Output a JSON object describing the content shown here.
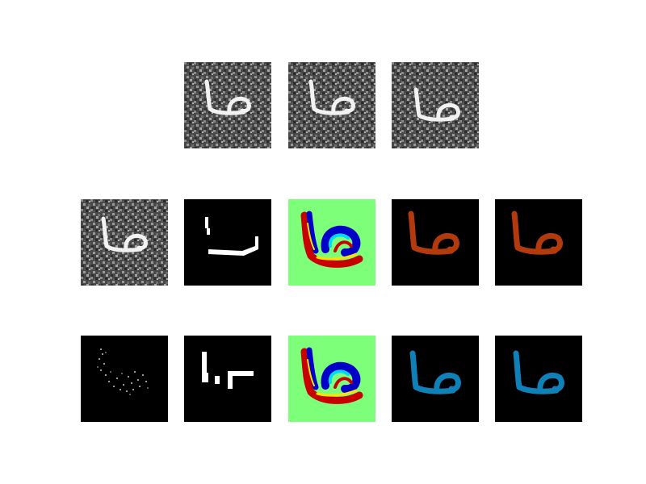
{
  "colors": {
    "page_background": "#ffffff",
    "noise_background": "#4a4a4a",
    "digit_white": "#f2f2f2",
    "mask_black": "#000000",
    "jet_background": "#7dff7a",
    "orange_overlay": "#b33a0c",
    "blue_overlay": "#0f80b8",
    "jet_red": "#c80000",
    "jet_blue": "#0000c8",
    "jet_cyan": "#00d8ff",
    "jet_yellow": "#ffe000"
  },
  "grid": {
    "rows": [
      {
        "tiles": [
          {
            "kind": "noisy-digit",
            "icon": "handwritten-digit-icon"
          },
          {
            "kind": "noisy-digit",
            "icon": "handwritten-digit-icon"
          },
          {
            "kind": "noisy-digit",
            "icon": "handwritten-digit-icon"
          }
        ]
      },
      {
        "tiles": [
          {
            "kind": "noisy-digit",
            "icon": "handwritten-digit-icon"
          },
          {
            "kind": "binary-mask",
            "icon": "partial-stroke-mask-icon"
          },
          {
            "kind": "jet-colormap",
            "icon": "colormap-heatmap-icon"
          },
          {
            "kind": "orange-overlay",
            "icon": "orange-digit-icon"
          },
          {
            "kind": "orange-overlay",
            "icon": "orange-digit-icon"
          }
        ]
      },
      {
        "tiles": [
          {
            "kind": "sparse-dots",
            "icon": "faint-digit-icon"
          },
          {
            "kind": "binary-mask",
            "icon": "partial-stroke-mask-icon"
          },
          {
            "kind": "jet-colormap",
            "icon": "colormap-heatmap-icon"
          },
          {
            "kind": "blue-overlay",
            "icon": "blue-digit-icon"
          },
          {
            "kind": "blue-overlay",
            "icon": "blue-digit-icon"
          }
        ]
      }
    ]
  }
}
